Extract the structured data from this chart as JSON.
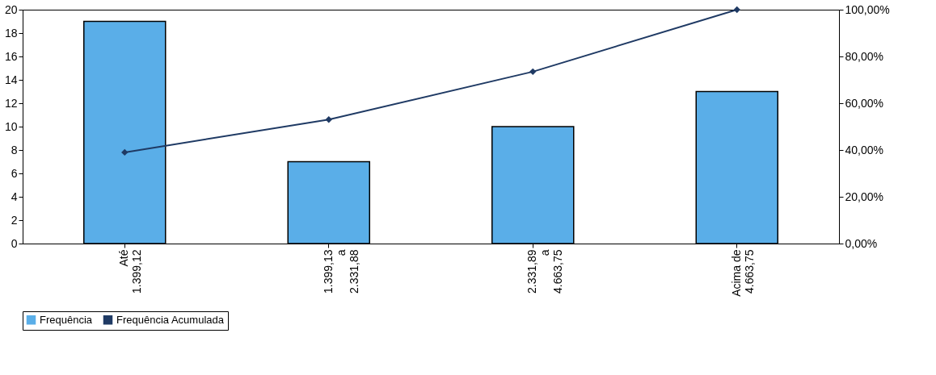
{
  "chart_data": {
    "type": "bar",
    "categories": [
      "Até\n1.399,12",
      "1.399,13\na\n2.331,88",
      "2.331,89\na\n4.663,75",
      "Acima de\n4.663,75"
    ],
    "series": [
      {
        "name": "Frequência",
        "color": "#5aaee8",
        "values": [
          19,
          7,
          10,
          13
        ]
      },
      {
        "name": "Frequência Acumulada",
        "type": "line",
        "axis": "y2",
        "color": "#1f3a64",
        "marker": "diamond",
        "values": [
          39,
          53,
          73.5,
          100
        ]
      }
    ],
    "ylim": [
      0,
      20
    ],
    "yticks": [
      0,
      2,
      4,
      6,
      8,
      10,
      12,
      14,
      16,
      18,
      20
    ],
    "y2lim": [
      0,
      100
    ],
    "y2ticks": [
      {
        "value": 0,
        "label": "0,00%"
      },
      {
        "value": 20,
        "label": "20,00%"
      },
      {
        "value": 40,
        "label": "40,00%"
      },
      {
        "value": 60,
        "label": "60,00%"
      },
      {
        "value": 80,
        "label": "80,00%"
      },
      {
        "value": 100,
        "label": "100,00%"
      }
    ],
    "grid": false,
    "legend": "bottom"
  }
}
